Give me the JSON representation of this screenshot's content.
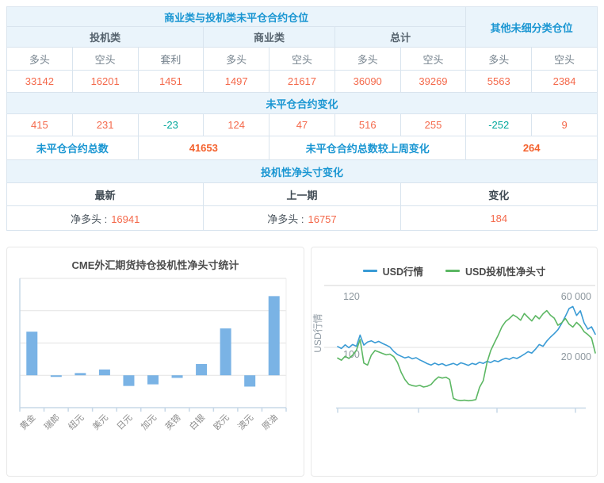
{
  "colors": {
    "header_blue": "#1a96d2",
    "header_bg": "#eaf4fb",
    "border": "#d9e4ee",
    "value_orange": "#f4694b",
    "value_negative_teal": "#00a79b",
    "bar_fill": "#7ab3e5",
    "line_blue": "#3a9bd5",
    "line_green": "#5cb763"
  },
  "table": {
    "section1": {
      "main_header": "商业类与投机类未平仓合约仓位",
      "other_header": "其他未细分类仓位",
      "group_headers": [
        "投机类",
        "商业类",
        "总计"
      ],
      "col_headers": [
        "多头",
        "空头",
        "套利",
        "多头",
        "空头",
        "多头",
        "空头",
        "多头",
        "空头"
      ],
      "values": [
        "33142",
        "16201",
        "1451",
        "1497",
        "21617",
        "36090",
        "39269",
        "5563",
        "2384"
      ]
    },
    "section2": {
      "header": "未平仓合约变化",
      "changes": [
        "415",
        "231",
        "-23",
        "124",
        "47",
        "516",
        "255",
        "-252",
        "9"
      ],
      "total_label": "未平仓合约总数",
      "total_value": "41653",
      "total_change_label": "未平仓合约总数较上周变化",
      "total_change_value": "264"
    },
    "section3": {
      "header": "投机性净头寸变化",
      "col_headers": [
        "最新",
        "上一期",
        "变化"
      ],
      "latest_label": "净多头 :",
      "latest_value": "16941",
      "previous_label": "净多头 :",
      "previous_value": "16757",
      "change_value": "184"
    }
  },
  "chart_data": [
    {
      "type": "bar",
      "title": "CME外汇期货持仓投机性净头寸统计",
      "categories": [
        "黄金",
        "瑞郎",
        "纽元",
        "美元",
        "日元",
        "加元",
        "英镑",
        "白银",
        "欧元",
        "澳元",
        "原油"
      ],
      "values": [
        1.35,
        -0.05,
        0.07,
        0.18,
        -0.33,
        -0.28,
        -0.08,
        0.35,
        1.45,
        -0.35,
        2.45
      ],
      "values_unit": "gridline units (y axis unlabeled; 1 unit = one gridline spacing)",
      "ylim": [
        -1,
        3
      ],
      "grid": true,
      "bar_color": "#7ab3e5",
      "xlabel": "",
      "ylabel": ""
    },
    {
      "type": "line",
      "title": "",
      "legend_position": "top",
      "left_axis": {
        "label": "USD行情",
        "ticks": [
          "120",
          "100"
        ],
        "range_note": "100 at mid gridline, 120 near top"
      },
      "right_axis": {
        "ticks": [
          "60 000",
          "20 000"
        ],
        "range_note": "20 000 at mid gridline, 60 000 near top"
      },
      "series": [
        {
          "name": "USD行情",
          "color": "#3a9bd5",
          "axis": "left",
          "values": [
            100.3,
            99.6,
            100.9,
            99.9,
            101.0,
            100.4,
            104.3,
            100.8,
            101.9,
            102.3,
            101.6,
            102.1,
            101.4,
            100.8,
            100.1,
            98.6,
            97.5,
            96.9,
            96.3,
            96.7,
            96.0,
            96.4,
            95.6,
            95.0,
            94.3,
            93.8,
            94.5,
            93.9,
            94.3,
            93.6,
            94.0,
            94.4,
            93.8,
            94.6,
            94.2,
            93.7,
            94.4,
            94.0,
            94.8,
            94.4,
            95.1,
            94.7,
            95.4,
            95.0,
            95.7,
            96.2,
            95.8,
            96.5,
            96.1,
            96.8,
            97.6,
            98.5,
            98.0,
            99.4,
            101.0,
            100.4,
            102.2,
            103.6,
            104.8,
            106.2,
            108.4,
            110.9,
            113.6,
            114.3,
            111.2,
            112.8,
            108.6,
            106.4,
            107.2,
            104.6
          ]
        },
        {
          "name": "USD投机性净头寸",
          "color": "#5cb763",
          "axis": "right",
          "values": [
            12500,
            11000,
            13800,
            12200,
            14500,
            18000,
            25500,
            9000,
            7600,
            14500,
            17800,
            16800,
            15800,
            14800,
            15300,
            13500,
            9500,
            2500,
            -2500,
            -5800,
            -6800,
            -7200,
            -6600,
            -7800,
            -7200,
            -6000,
            -3000,
            -700,
            -1500,
            -900,
            -2500,
            -15800,
            -16900,
            -17300,
            -17000,
            -17400,
            -17100,
            -16600,
            -8000,
            -3300,
            9400,
            17800,
            23300,
            28500,
            34400,
            38200,
            40200,
            42800,
            41200,
            39000,
            43700,
            41000,
            38500,
            42200,
            40000,
            43500,
            45800,
            42500,
            40500,
            35500,
            37200,
            40200,
            36200,
            34200,
            37500,
            35000,
            31000,
            29000,
            26500,
            16100
          ]
        }
      ]
    }
  ]
}
